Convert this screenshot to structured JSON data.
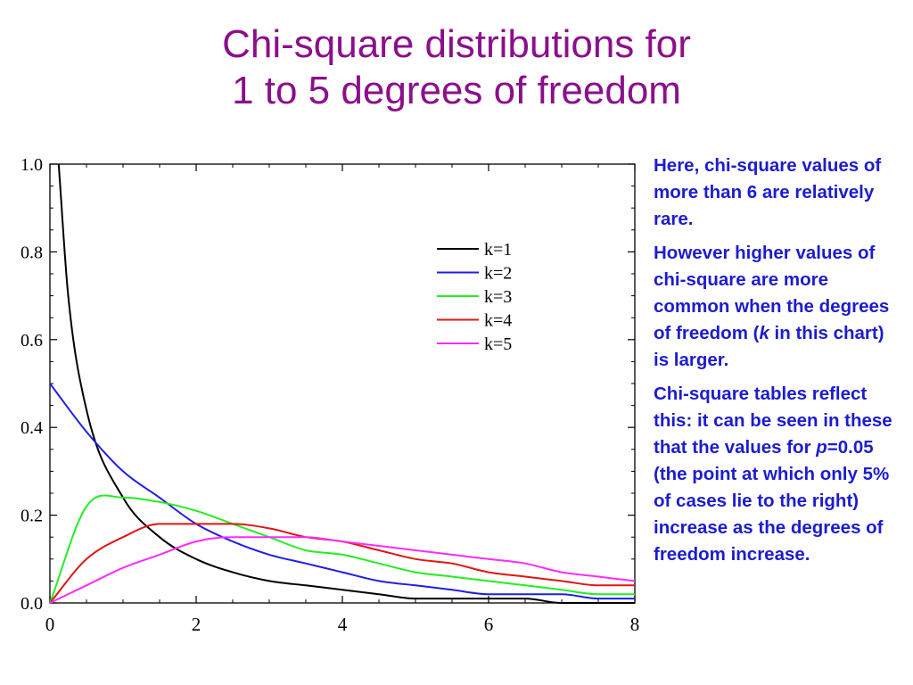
{
  "slide": {
    "title_line1": "Chi-square distributions for",
    "title_line2": "1 to 5 degrees of freedom",
    "notes": {
      "p1": "Here, chi-square values of more than 6 are relatively rare.",
      "p2_part1": "However higher values of chi-square are more common when the degrees of freedom (",
      "p2_k": "k",
      "p2_part2": " in this chart) is larger.",
      "p3_part1": "Chi-square tables reflect this: it can be seen in these that the values for ",
      "p3_p": "p",
      "p3_part2": "=0.05 (the point at which only 5% of cases lie to the right) increase as the degrees of freedom increase."
    }
  },
  "colors": {
    "title": "#8b0f8b",
    "notes": "#1c1ccf",
    "k1": "#000000",
    "k2": "#1f1fe0",
    "k3": "#22ee22",
    "k4": "#e01515",
    "k5": "#ff2aff"
  },
  "chart_data": {
    "type": "line",
    "title": "",
    "xlabel": "",
    "ylabel": "",
    "xlim": [
      0,
      8
    ],
    "ylim": [
      0,
      1.0
    ],
    "x_ticks": [
      "0",
      "2",
      "4",
      "6",
      "8"
    ],
    "y_ticks": [
      "0.0",
      "0.2",
      "0.4",
      "0.6",
      "0.8",
      "1.0"
    ],
    "grid": false,
    "legend_position": "top-right",
    "x": [
      0,
      0.5,
      1,
      1.5,
      2,
      2.5,
      3,
      3.5,
      4,
      4.5,
      5,
      5.5,
      6,
      6.5,
      7,
      7.5,
      8
    ],
    "series": [
      {
        "name": "k=1",
        "values": [
          null,
          0.44,
          0.24,
          0.15,
          0.1,
          0.07,
          0.05,
          0.04,
          0.03,
          0.02,
          0.01,
          0.01,
          0.01,
          0.01,
          0.0,
          0.0,
          0.0
        ]
      },
      {
        "name": "k=2",
        "values": [
          0.5,
          0.39,
          0.3,
          0.24,
          0.18,
          0.14,
          0.11,
          0.09,
          0.07,
          0.05,
          0.04,
          0.03,
          0.02,
          0.02,
          0.02,
          0.01,
          0.01
        ]
      },
      {
        "name": "k=3",
        "values": [
          0.0,
          0.22,
          0.24,
          0.23,
          0.21,
          0.18,
          0.15,
          0.12,
          0.11,
          0.09,
          0.07,
          0.06,
          0.05,
          0.04,
          0.03,
          0.02,
          0.02
        ]
      },
      {
        "name": "k=4",
        "values": [
          0.0,
          0.1,
          0.15,
          0.18,
          0.18,
          0.18,
          0.17,
          0.15,
          0.14,
          0.12,
          0.1,
          0.09,
          0.07,
          0.06,
          0.05,
          0.04,
          0.04
        ]
      },
      {
        "name": "k=5",
        "values": [
          0.0,
          0.04,
          0.08,
          0.11,
          0.14,
          0.15,
          0.15,
          0.15,
          0.14,
          0.13,
          0.12,
          0.11,
          0.1,
          0.09,
          0.07,
          0.06,
          0.05
        ]
      }
    ]
  }
}
